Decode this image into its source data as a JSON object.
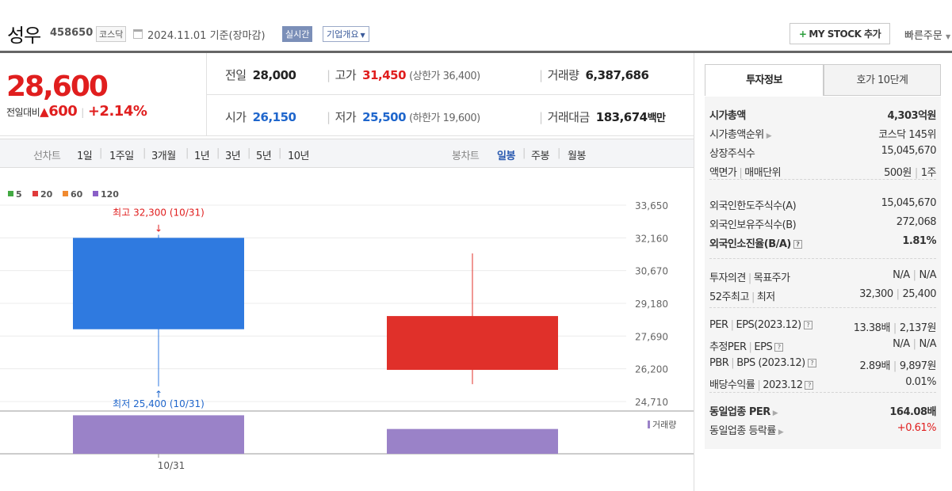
{
  "header": {
    "name": "성우",
    "code": "458650",
    "market": "코스닥",
    "date": "2024.11.01",
    "basis": "기준(장마감)",
    "realtime": "실시간",
    "company_info": "기업개요",
    "mystock": "MY STOCK 추가",
    "mystock_plus": "+",
    "quick_order": "빠른주문"
  },
  "price": {
    "current": "28,600",
    "change_label": "전일대비",
    "change_arrow": "▲",
    "change": "600",
    "change_pct": "+2.14%"
  },
  "summary": {
    "prev_label": "전일",
    "prev": "28,000",
    "high_label": "고가",
    "high": "31,450",
    "upper_limit_text": "(상한가 36,400)",
    "volume_label": "거래량",
    "volume": "6,387,686",
    "open_label": "시가",
    "open": "26,150",
    "low_label": "저가",
    "low": "25,500",
    "lower_limit_text": "(하한가 19,600)",
    "amount_label": "거래대금",
    "amount": "183,674",
    "amount_unit": "백만"
  },
  "period_tabs": {
    "line_label": "선차트",
    "line": [
      "1일",
      "1주일",
      "3개월",
      "1년",
      "3년",
      "5년",
      "10년"
    ],
    "candle_label": "봉차트",
    "candle": [
      "일봉",
      "주봉",
      "월봉"
    ],
    "selected": "일봉"
  },
  "chart_data": {
    "type": "candlestick",
    "ma_legend": [
      {
        "name": "5",
        "color": "#43a943"
      },
      {
        "name": "20",
        "color": "#e03a3a"
      },
      {
        "name": "60",
        "color": "#f08a30"
      },
      {
        "name": "120",
        "color": "#8a5fc7"
      }
    ],
    "y_ticks": [
      "33,650",
      "32,160",
      "30,670",
      "29,180",
      "27,690",
      "26,200",
      "24,710"
    ],
    "ylim": [
      24710,
      33650
    ],
    "x_label": "10/31",
    "candles": [
      {
        "open": 32160,
        "close": 28000,
        "high": 32300,
        "low": 25400,
        "color": "#2f7ae0"
      },
      {
        "open": 26150,
        "close": 28600,
        "high": 31450,
        "low": 25500,
        "color": "#e0302a"
      }
    ],
    "volume_rel": [
      0.9,
      0.58
    ],
    "volume_label": "거래량",
    "high_annot": "최고 32,300 (10/31)",
    "low_annot": "최저 25,400 (10/31)"
  },
  "right": {
    "tab_info": "투자정보",
    "tab_quote": "호가 10단계",
    "g1": [
      {
        "k": "시가총액",
        "v": "4,303억원",
        "bold": true
      },
      {
        "k": "시가총액순위",
        "v": "코스닥 145위",
        "arrow": true
      },
      {
        "k": "상장주식수",
        "v": "15,045,670"
      },
      {
        "k": "액면가",
        "k2": "매매단위",
        "v": "500원",
        "v2": "1주"
      }
    ],
    "g2": [
      {
        "k": "외국인한도주식수(A)",
        "v": "15,045,670"
      },
      {
        "k": "외국인보유주식수(B)",
        "v": "272,068"
      },
      {
        "k": "외국인소진율(B/A)",
        "v": "1.81%",
        "bold": true,
        "q": true
      }
    ],
    "g3": [
      {
        "k": "투자의견",
        "k2": "목표주가",
        "v": "N/A",
        "v2": "N/A"
      },
      {
        "k": "52주최고",
        "k2": "최저",
        "v": "32,300",
        "v2": "25,400"
      }
    ],
    "g4": [
      {
        "k": "PER",
        "k2": "EPS(2023.12)",
        "v": "13.38배",
        "v2": "2,137원",
        "q": true
      },
      {
        "k": "추정PER",
        "k2": "EPS",
        "v": "N/A",
        "v2": "N/A",
        "q": true
      },
      {
        "k": "PBR",
        "k2": "BPS (2023.12)",
        "v": "2.89배",
        "v2": "9,897원",
        "q": true
      },
      {
        "k": "배당수익률",
        "k2": "2023.12",
        "v": "0.01%",
        "q": true
      }
    ],
    "g5": [
      {
        "k": "동일업종 PER",
        "v": "164.08배",
        "bold": true,
        "arrow": true
      },
      {
        "k": "동일업종 등락률",
        "v": "+0.61%",
        "arrow": true,
        "red": true
      }
    ]
  }
}
